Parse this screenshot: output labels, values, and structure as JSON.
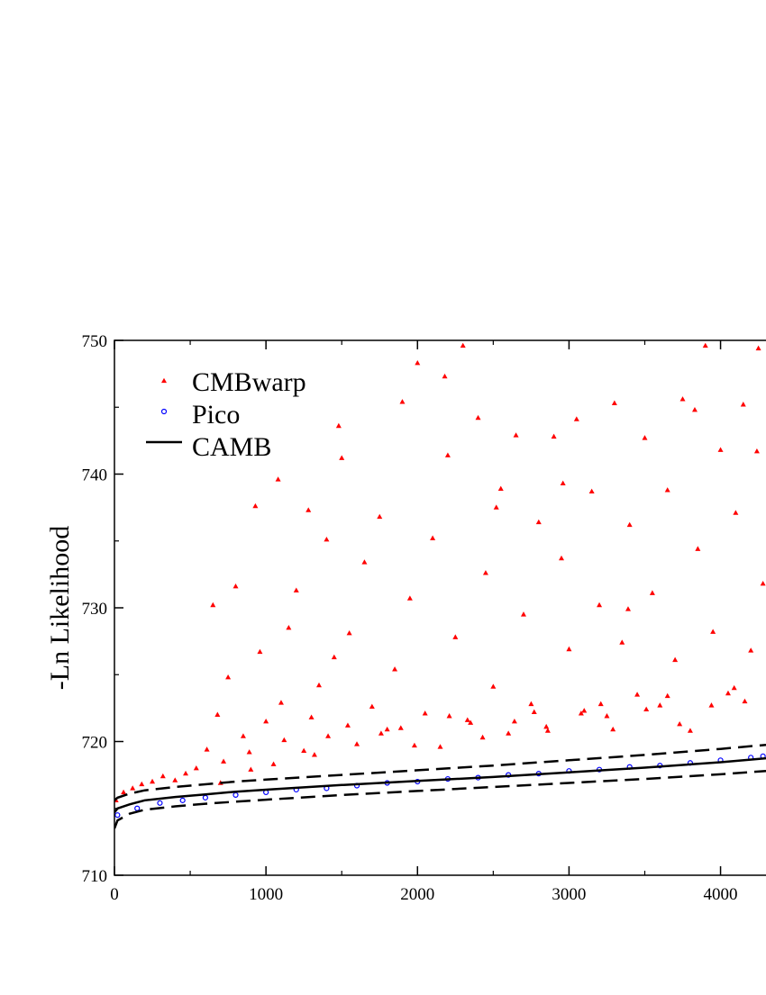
{
  "chart_data": {
    "type": "scatter",
    "title": "",
    "xlabel": "",
    "ylabel": "-Ln Likelihood",
    "xlim": [
      0,
      4300
    ],
    "ylim": [
      710,
      750
    ],
    "x_ticks": [
      0,
      1000,
      2000,
      3000,
      4000
    ],
    "x_tick_labels": [
      "0",
      "1000",
      "2000",
      "3000",
      "4000"
    ],
    "y_ticks": [
      710,
      720,
      730,
      740,
      750
    ],
    "y_tick_labels": [
      "710",
      "720",
      "730",
      "740",
      "750"
    ],
    "grid": false,
    "legend_position": "top-left",
    "legend": [
      {
        "label": "CMBwarp",
        "marker": "triangle",
        "color": "#ff0000"
      },
      {
        "label": "Pico",
        "marker": "circle",
        "color": "#0000ff"
      },
      {
        "label": "CAMB",
        "marker": "line",
        "color": "#000000"
      }
    ],
    "series": [
      {
        "name": "CAMB",
        "kind": "line",
        "color": "#000000",
        "x": [
          0,
          20,
          100,
          200,
          400,
          600,
          800,
          1000,
          1500,
          2000,
          2500,
          3000,
          3500,
          4000,
          4300
        ],
        "y": [
          714.7,
          715.0,
          715.3,
          715.6,
          715.85,
          716.05,
          716.25,
          716.4,
          716.75,
          717.05,
          717.35,
          717.7,
          718.05,
          718.45,
          718.75
        ]
      },
      {
        "name": "CAMB upper bound",
        "kind": "dashed-line",
        "color": "#000000",
        "x": [
          0,
          20,
          100,
          200,
          400,
          600,
          800,
          1000,
          1500,
          2000,
          2500,
          3000,
          3500,
          4000,
          4300
        ],
        "y": [
          715.6,
          715.8,
          716.1,
          716.35,
          716.6,
          716.8,
          717.0,
          717.15,
          717.5,
          717.85,
          718.2,
          718.6,
          719.0,
          719.45,
          719.75
        ]
      },
      {
        "name": "CAMB lower bound",
        "kind": "dashed-line",
        "color": "#000000",
        "x": [
          0,
          20,
          100,
          200,
          400,
          600,
          800,
          1000,
          1500,
          2000,
          2500,
          3000,
          3500,
          4000,
          4300
        ],
        "y": [
          713.5,
          714.1,
          714.6,
          714.9,
          715.15,
          715.35,
          715.5,
          715.65,
          716.0,
          716.3,
          716.6,
          716.9,
          717.2,
          717.55,
          717.8
        ]
      },
      {
        "name": "CMBwarp",
        "kind": "scatter",
        "marker": "triangle",
        "color": "#ff0000",
        "x": [
          10,
          60,
          120,
          180,
          250,
          320,
          400,
          470,
          540,
          610,
          650,
          680,
          700,
          750,
          800,
          850,
          900,
          930,
          960,
          1000,
          1050,
          1080,
          1100,
          1150,
          1200,
          1250,
          1280,
          1300,
          1350,
          1400,
          1450,
          1480,
          1500,
          1550,
          1600,
          1650,
          1700,
          1750,
          1800,
          1850,
          1900,
          1950,
          2000,
          2050,
          2100,
          2150,
          2200,
          2250,
          2300,
          2350,
          2400,
          2450,
          2500,
          2550,
          2600,
          2650,
          2700,
          2750,
          2800,
          2850,
          2900,
          2950,
          3000,
          3050,
          3100,
          3150,
          3200,
          3250,
          3300,
          3350,
          3400,
          3450,
          3500,
          3550,
          3600,
          3650,
          3700,
          3750,
          3800,
          3850,
          3900,
          3950,
          4000,
          4050,
          4100,
          4150,
          4200,
          4250,
          4280,
          720,
          1120,
          1320,
          1540,
          1760,
          1980,
          2210,
          2430,
          2640,
          2860,
          3080,
          3290,
          3510,
          3730,
          3940,
          4160,
          890,
          1410,
          1890,
          2330,
          2770,
          3210,
          3650,
          4090,
          2180,
          2520,
          2960,
          3390,
          3830,
          4240
        ],
        "y": [
          715.6,
          716.2,
          716.5,
          716.8,
          717.0,
          717.4,
          717.1,
          717.6,
          718.0,
          719.4,
          730.2,
          722.0,
          716.9,
          724.8,
          731.6,
          720.4,
          717.9,
          737.6,
          726.7,
          721.5,
          718.3,
          739.6,
          722.9,
          728.5,
          731.3,
          719.3,
          737.3,
          721.8,
          724.2,
          735.1,
          726.3,
          743.6,
          741.2,
          728.1,
          719.8,
          733.4,
          722.6,
          736.8,
          720.9,
          725.4,
          745.4,
          730.7,
          748.3,
          722.1,
          735.2,
          719.6,
          741.4,
          727.8,
          749.6,
          721.4,
          744.2,
          732.6,
          724.1,
          738.9,
          720.6,
          742.9,
          729.5,
          722.8,
          736.4,
          721.1,
          742.8,
          733.7,
          726.9,
          744.1,
          722.3,
          738.7,
          730.2,
          721.9,
          745.3,
          727.4,
          736.2,
          723.5,
          742.7,
          731.1,
          722.7,
          738.8,
          726.1,
          745.6,
          720.8,
          734.4,
          749.6,
          728.2,
          741.8,
          723.6,
          737.1,
          745.2,
          726.8,
          749.4,
          731.8,
          718.5,
          720.1,
          719.0,
          721.2,
          720.6,
          719.7,
          721.9,
          720.3,
          721.5,
          720.8,
          722.1,
          720.9,
          722.4,
          721.3,
          722.7,
          723.0,
          719.2,
          720.4,
          721.0,
          721.6,
          722.2,
          722.8,
          723.4,
          724.0,
          747.3,
          737.5,
          739.3,
          729.9,
          744.8,
          741.7
        ]
      },
      {
        "name": "Pico",
        "kind": "scatter",
        "marker": "circle",
        "color": "#0000ff",
        "x": [
          20,
          150,
          300,
          450,
          600,
          800,
          1000,
          1200,
          1400,
          1600,
          1800,
          2000,
          2200,
          2400,
          2600,
          2800,
          3000,
          3200,
          3400,
          3600,
          3800,
          4000,
          4200,
          4280
        ],
        "y": [
          714.5,
          715.0,
          715.4,
          715.6,
          715.8,
          716.0,
          716.2,
          716.4,
          716.5,
          716.7,
          716.9,
          717.0,
          717.2,
          717.3,
          717.5,
          717.6,
          717.8,
          717.9,
          718.1,
          718.2,
          718.4,
          718.6,
          718.8,
          718.9
        ]
      }
    ]
  }
}
